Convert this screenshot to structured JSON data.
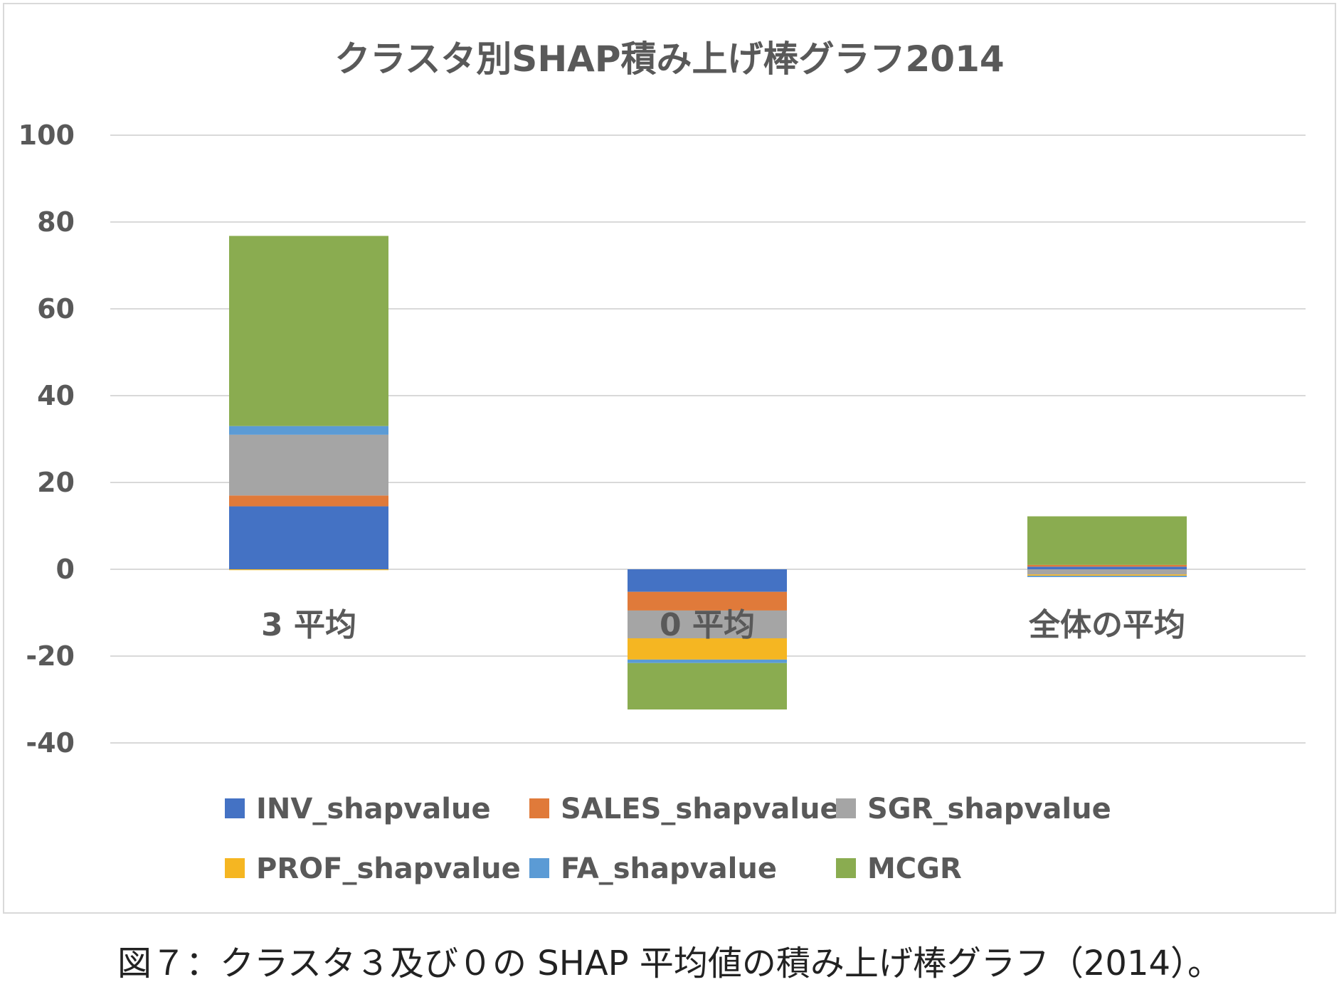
{
  "chart_data": {
    "type": "bar",
    "stacked": true,
    "title": "クラスタ別SHAP積み上げ棒グラフ2014",
    "categories": [
      "3 平均",
      "0 平均",
      "全体の平均"
    ],
    "ylim": [
      -40,
      100
    ],
    "yticks": [
      100,
      80,
      60,
      40,
      20,
      0,
      -20,
      -40
    ],
    "grid": true,
    "legend_position": "bottom",
    "series": [
      {
        "name": "INV_shapvalue",
        "color": "#4472c4",
        "values": [
          14.5,
          -5.2,
          0.6
        ]
      },
      {
        "name": "SALES_shapvalue",
        "color": "#e07a3a",
        "values": [
          2.5,
          -4.3,
          0.4
        ]
      },
      {
        "name": "SGR_shapvalue",
        "color": "#a5a5a5",
        "values": [
          14.0,
          -6.4,
          -1.2
        ]
      },
      {
        "name": "PROF_shapvalue",
        "color": "#f5b622",
        "values": [
          -0.2,
          -4.9,
          -0.3
        ]
      },
      {
        "name": "FA_shapvalue",
        "color": "#5b9bd5",
        "values": [
          2.0,
          -0.8,
          -0.3
        ]
      },
      {
        "name": "MCGR",
        "color": "#8aac50",
        "values": [
          43.8,
          -10.7,
          11.2
        ]
      }
    ]
  },
  "caption": "図７：クラスタ３及び０の SHAP 平均値の積み上げ棒グラフ（2014）。"
}
